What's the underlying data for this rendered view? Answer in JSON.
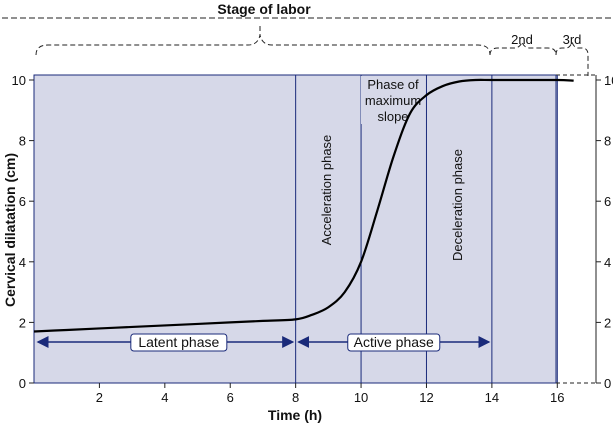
{
  "chart_data": {
    "type": "line",
    "title": "Stage of labor",
    "xlabel": "Time (h)",
    "ylabel": "Cervical dilatation (cm)",
    "xlim": [
      0,
      17
    ],
    "ylim": [
      0,
      10
    ],
    "x_ticks": [
      2,
      4,
      6,
      8,
      10,
      12,
      14,
      16
    ],
    "y_ticks": [
      0,
      2,
      4,
      6,
      8,
      10
    ],
    "grid": false,
    "vertical_lines": [
      8,
      10,
      12,
      14,
      16
    ],
    "stage_labels": [
      "2nd",
      "3rd"
    ],
    "phase_labels": {
      "acceleration": "Acceleration phase",
      "max_slope_line1": "Phase of",
      "max_slope_line2": "maximum",
      "max_slope_line3": "slope",
      "deceleration": "Deceleration phase"
    },
    "span_labels": {
      "latent": "Latent phase",
      "active": "Active phase"
    },
    "series": [
      {
        "x": [
          0,
          1,
          2,
          3,
          4,
          5,
          6,
          7,
          8,
          8.5,
          9,
          9.5,
          10,
          10.5,
          11,
          11.5,
          12,
          12.5,
          13,
          13.5,
          14,
          15,
          16,
          16.5
        ],
        "values": [
          1.7,
          1.75,
          1.8,
          1.85,
          1.9,
          1.95,
          2.0,
          2.05,
          2.1,
          2.25,
          2.5,
          3.0,
          4.0,
          5.7,
          7.5,
          8.9,
          9.5,
          9.8,
          9.95,
          10.0,
          10.0,
          10.0,
          10.0,
          9.98
        ]
      }
    ],
    "colors": {
      "plot_fill": "#d6d8e8",
      "axis": "#1a2a7a",
      "curve": "#000000"
    }
  }
}
